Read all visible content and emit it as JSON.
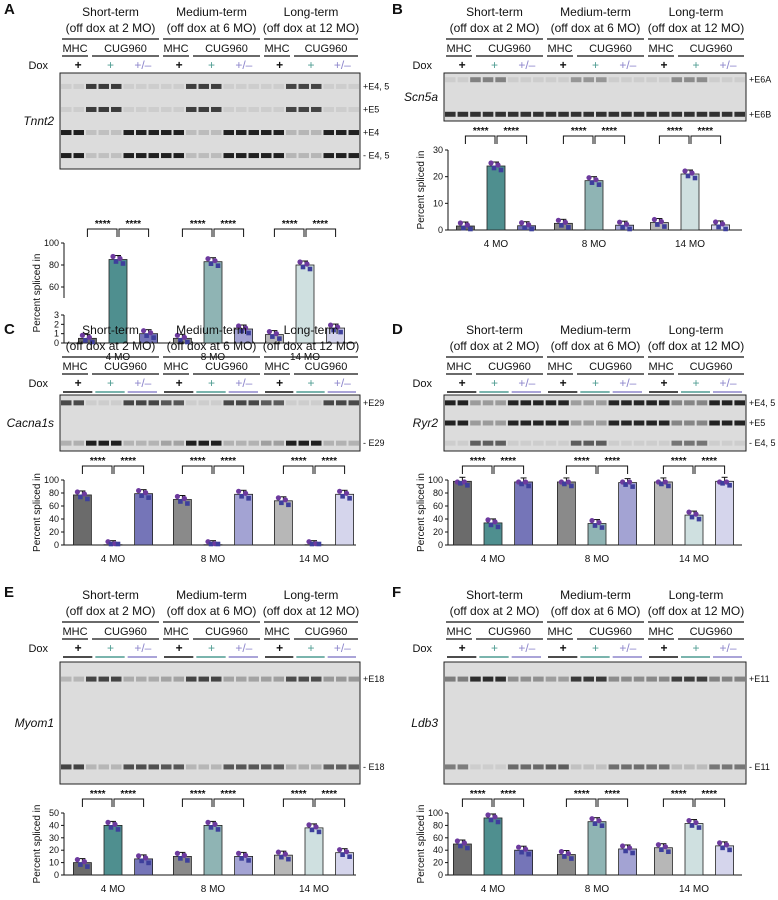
{
  "groups": [
    {
      "line1": "Short-term",
      "line2": "(off dox at 2 MO)"
    },
    {
      "line1": "Medium-term",
      "line2": "(off dox at 6 MO)"
    },
    {
      "line1": "Long-term",
      "line2": "(off dox at 12 MO)"
    }
  ],
  "genotype_labels": {
    "mhc": "MHC",
    "cug": "CUG960"
  },
  "dox_label": "Dox",
  "dox_values": [
    "+",
    "+",
    "+/–"
  ],
  "ages": [
    "4 MO",
    "8 MO",
    "14 MO"
  ],
  "ylabel": "Percent spliced in",
  "sig_label": "****",
  "colors": {
    "mhc": [
      "#6b6b6b",
      "#8a8a8a",
      "#b7b7b7"
    ],
    "cug": [
      "#4f8f8f",
      "#8fb4b4",
      "#cfe0e0"
    ],
    "rescue": [
      "#7575b8",
      "#a3a3d3",
      "#d5d5ec"
    ],
    "teal_line": "#4e9c92",
    "purple_line": "#8d86cc",
    "dots": [
      "#6d3a9e",
      "#3e3f9c"
    ]
  },
  "chart_data": [
    {
      "panel": "A",
      "gene": "Tnnt2",
      "type": "bar",
      "broken_axis": true,
      "ylim": [
        0,
        100
      ],
      "yticks_low": [
        0,
        1,
        2,
        3
      ],
      "yticks_high": [
        60,
        80,
        100
      ],
      "band_labels": [
        "+E4, 5",
        "+E5",
        "+E4",
        "- E4, 5"
      ],
      "series": [
        {
          "name": "MHC",
          "values": [
            0.5,
            0.5,
            0.9
          ]
        },
        {
          "name": "CUG960 +",
          "values": [
            85,
            83,
            80
          ]
        },
        {
          "name": "CUG960 +/–",
          "values": [
            1.0,
            1.5,
            1.6
          ]
        }
      ]
    },
    {
      "panel": "B",
      "gene": "Scn5a",
      "type": "bar",
      "ylim": [
        0,
        30
      ],
      "yticks": [
        0,
        10,
        20,
        30
      ],
      "band_labels": [
        "+E6A",
        "+E6B"
      ],
      "series": [
        {
          "name": "MHC",
          "values": [
            1.5,
            2.5,
            2.8
          ]
        },
        {
          "name": "CUG960 +",
          "values": [
            24,
            18.5,
            21
          ]
        },
        {
          "name": "CUG960 +/–",
          "values": [
            1.6,
            1.8,
            1.9
          ]
        }
      ]
    },
    {
      "panel": "C",
      "gene": "Cacna1s",
      "type": "bar",
      "ylim": [
        0,
        100
      ],
      "yticks": [
        0,
        20,
        40,
        60,
        80,
        100
      ],
      "band_labels": [
        "+E29",
        "- E29"
      ],
      "series": [
        {
          "name": "MHC",
          "values": [
            77,
            70,
            68
          ]
        },
        {
          "name": "CUG960 +",
          "values": [
            0.5,
            0.5,
            0.5
          ]
        },
        {
          "name": "CUG960 +/–",
          "values": [
            79,
            78,
            78
          ]
        }
      ]
    },
    {
      "panel": "D",
      "gene": "Ryr2",
      "type": "bar",
      "ylim": [
        0,
        100
      ],
      "yticks": [
        0,
        20,
        40,
        60,
        80,
        100
      ],
      "band_labels": [
        "+E4, 5",
        "+E5",
        "- E4, 5"
      ],
      "series": [
        {
          "name": "MHC",
          "values": [
            98,
            97,
            97
          ]
        },
        {
          "name": "CUG960 +",
          "values": [
            34,
            33,
            46
          ]
        },
        {
          "name": "CUG960 +/–",
          "values": [
            97,
            96,
            98
          ]
        }
      ]
    },
    {
      "panel": "E",
      "gene": "Myom1",
      "type": "bar",
      "ylim": [
        0,
        50
      ],
      "yticks": [
        0,
        10,
        20,
        30,
        40,
        50
      ],
      "band_labels": [
        "+E18",
        "- E18"
      ],
      "series": [
        {
          "name": "MHC",
          "values": [
            10,
            15,
            16
          ]
        },
        {
          "name": "CUG960 +",
          "values": [
            40,
            40,
            38
          ]
        },
        {
          "name": "CUG960 +/–",
          "values": [
            13,
            15,
            18
          ]
        }
      ]
    },
    {
      "panel": "F",
      "gene": "Ldb3",
      "type": "bar",
      "ylim": [
        0,
        100
      ],
      "yticks": [
        0,
        20,
        40,
        60,
        80,
        100
      ],
      "band_labels": [
        "+E11",
        "- E11"
      ],
      "series": [
        {
          "name": "MHC",
          "values": [
            50,
            33,
            44
          ]
        },
        {
          "name": "CUG960 +",
          "values": [
            92,
            86,
            83
          ]
        },
        {
          "name": "CUG960 +/–",
          "values": [
            40,
            42,
            47
          ]
        }
      ]
    }
  ]
}
